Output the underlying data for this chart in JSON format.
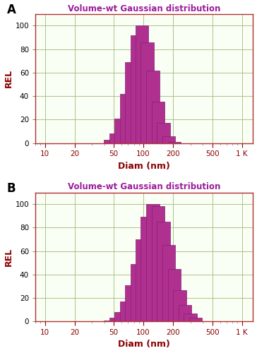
{
  "title": "Volume-wt Gaussian distribution",
  "title_color": "#9B1B9B",
  "xlabel": "Diam (nm)",
  "ylabel": "REL",
  "axis_label_color": "#8B0000",
  "bar_color": "#B03090",
  "bar_edge_color": "#802070",
  "background_color": "#FAFFF5",
  "grid_color": "#A0B878",
  "axis_border_color": "#B03030",
  "panel_A_label": "A",
  "panel_B_label": "B",
  "ylim": [
    0,
    110
  ],
  "yticks": [
    0,
    20,
    40,
    60,
    80,
    100
  ],
  "xtick_labels": [
    "10",
    "20",
    "50",
    "100",
    "200",
    "500",
    "1 K"
  ],
  "xtick_values": [
    10,
    20,
    50,
    100,
    200,
    500,
    1000
  ],
  "log_bar_width": 0.13,
  "bars_A": {
    "centers": [
      47,
      53,
      60,
      68,
      77,
      87,
      98,
      111,
      126,
      143,
      162,
      183,
      208
    ],
    "heights": [
      3,
      8,
      21,
      42,
      69,
      92,
      100,
      86,
      62,
      35,
      17,
      6,
      1
    ]
  },
  "bars_B": {
    "centers": [
      47,
      53,
      60,
      68,
      77,
      87,
      98,
      111,
      126,
      143,
      162,
      183,
      208,
      236,
      267,
      303,
      344
    ],
    "heights": [
      1,
      3,
      8,
      17,
      31,
      49,
      70,
      89,
      100,
      98,
      85,
      65,
      45,
      27,
      14,
      7,
      3
    ]
  }
}
